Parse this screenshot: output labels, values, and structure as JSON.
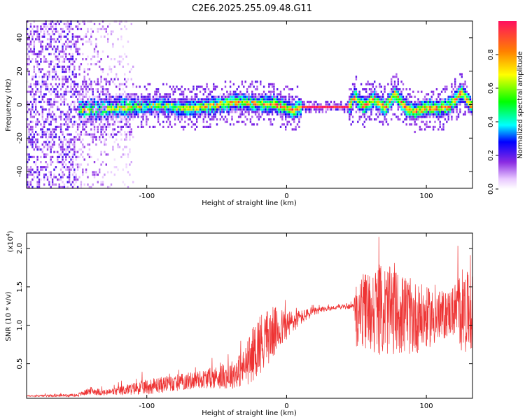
{
  "title": "C2E6.2025.255.09.48.G11",
  "chart_data": [
    {
      "type": "heatmap",
      "xlabel": "Height of straight line (km)",
      "ylabel": "Frequency (Hz)",
      "xlim": [
        -186,
        133
      ],
      "ylim": [
        -50,
        50
      ],
      "x_ticks": [
        -100,
        0,
        100
      ],
      "x_tick_labels": [
        "-100",
        "0",
        "100"
      ],
      "y_ticks": [
        -40,
        -20,
        0,
        20,
        40
      ],
      "y_tick_labels": [
        "-40",
        "-20",
        "0",
        "20",
        "40"
      ],
      "ridge": {
        "x": [
          -145,
          -130,
          -110,
          -90,
          -75,
          -60,
          -45,
          -35,
          -20,
          -10,
          0,
          5,
          10,
          20,
          30,
          40,
          44,
          48,
          55,
          62,
          70,
          77,
          85,
          92,
          100,
          107,
          115,
          120,
          125,
          130,
          133
        ],
        "freq_hz": [
          -4,
          -3,
          -2,
          -1,
          -3,
          -2,
          0,
          1,
          0,
          0,
          -3,
          -4,
          -2,
          -2,
          -2,
          -2,
          -2,
          4,
          -2,
          3,
          -3,
          6,
          -3,
          -5,
          -2,
          -3,
          -2,
          2,
          7,
          0,
          -3
        ]
      },
      "colorbar": {
        "label": "Normalized spectral amplitude",
        "range": [
          0,
          1
        ],
        "ticks": [
          0.0,
          0.2,
          0.4,
          0.6,
          0.8
        ],
        "tick_labels": [
          "0.0",
          "0.2",
          "0.4",
          "0.6",
          "0.8"
        ]
      }
    },
    {
      "type": "line",
      "xlabel": "Height of straight line (km)",
      "ylabel": "SNR (10 * v/v)",
      "scale_label": "(x10",
      "scale_exponent": "4",
      "scale_suffix": ")",
      "xlim": [
        -186,
        133
      ],
      "ylim": [
        0.05,
        2.2
      ],
      "x_ticks": [
        -100,
        0,
        100
      ],
      "x_tick_labels": [
        "-100",
        "0",
        "100"
      ],
      "y_ticks": [
        0.5,
        1.0,
        1.5,
        2.0
      ],
      "y_tick_labels": [
        "0.5",
        "1.0",
        "1.5",
        "2.0"
      ],
      "color": "#ee3333",
      "envelope": {
        "x": [
          -186,
          -150,
          -140,
          -130,
          -100,
          -60,
          -40,
          -30,
          -25,
          -20,
          -10,
          0,
          10,
          20,
          30,
          40,
          48,
          50,
          60,
          70,
          80,
          90,
          100,
          110,
          115,
          120,
          125,
          133
        ],
        "mean": [
          0.08,
          0.09,
          0.15,
          0.12,
          0.2,
          0.3,
          0.35,
          0.45,
          0.6,
          0.75,
          0.9,
          1.0,
          1.1,
          1.18,
          1.22,
          1.24,
          1.25,
          1.15,
          1.2,
          1.2,
          1.15,
          1.1,
          1.1,
          1.1,
          1.15,
          1.2,
          1.2,
          1.15
        ],
        "noise": [
          0.01,
          0.02,
          0.05,
          0.04,
          0.1,
          0.12,
          0.18,
          0.25,
          0.35,
          0.4,
          0.35,
          0.2,
          0.1,
          0.05,
          0.03,
          0.03,
          0.03,
          0.45,
          0.55,
          0.6,
          0.55,
          0.5,
          0.4,
          0.35,
          0.3,
          0.35,
          0.55,
          0.5
        ]
      }
    }
  ]
}
